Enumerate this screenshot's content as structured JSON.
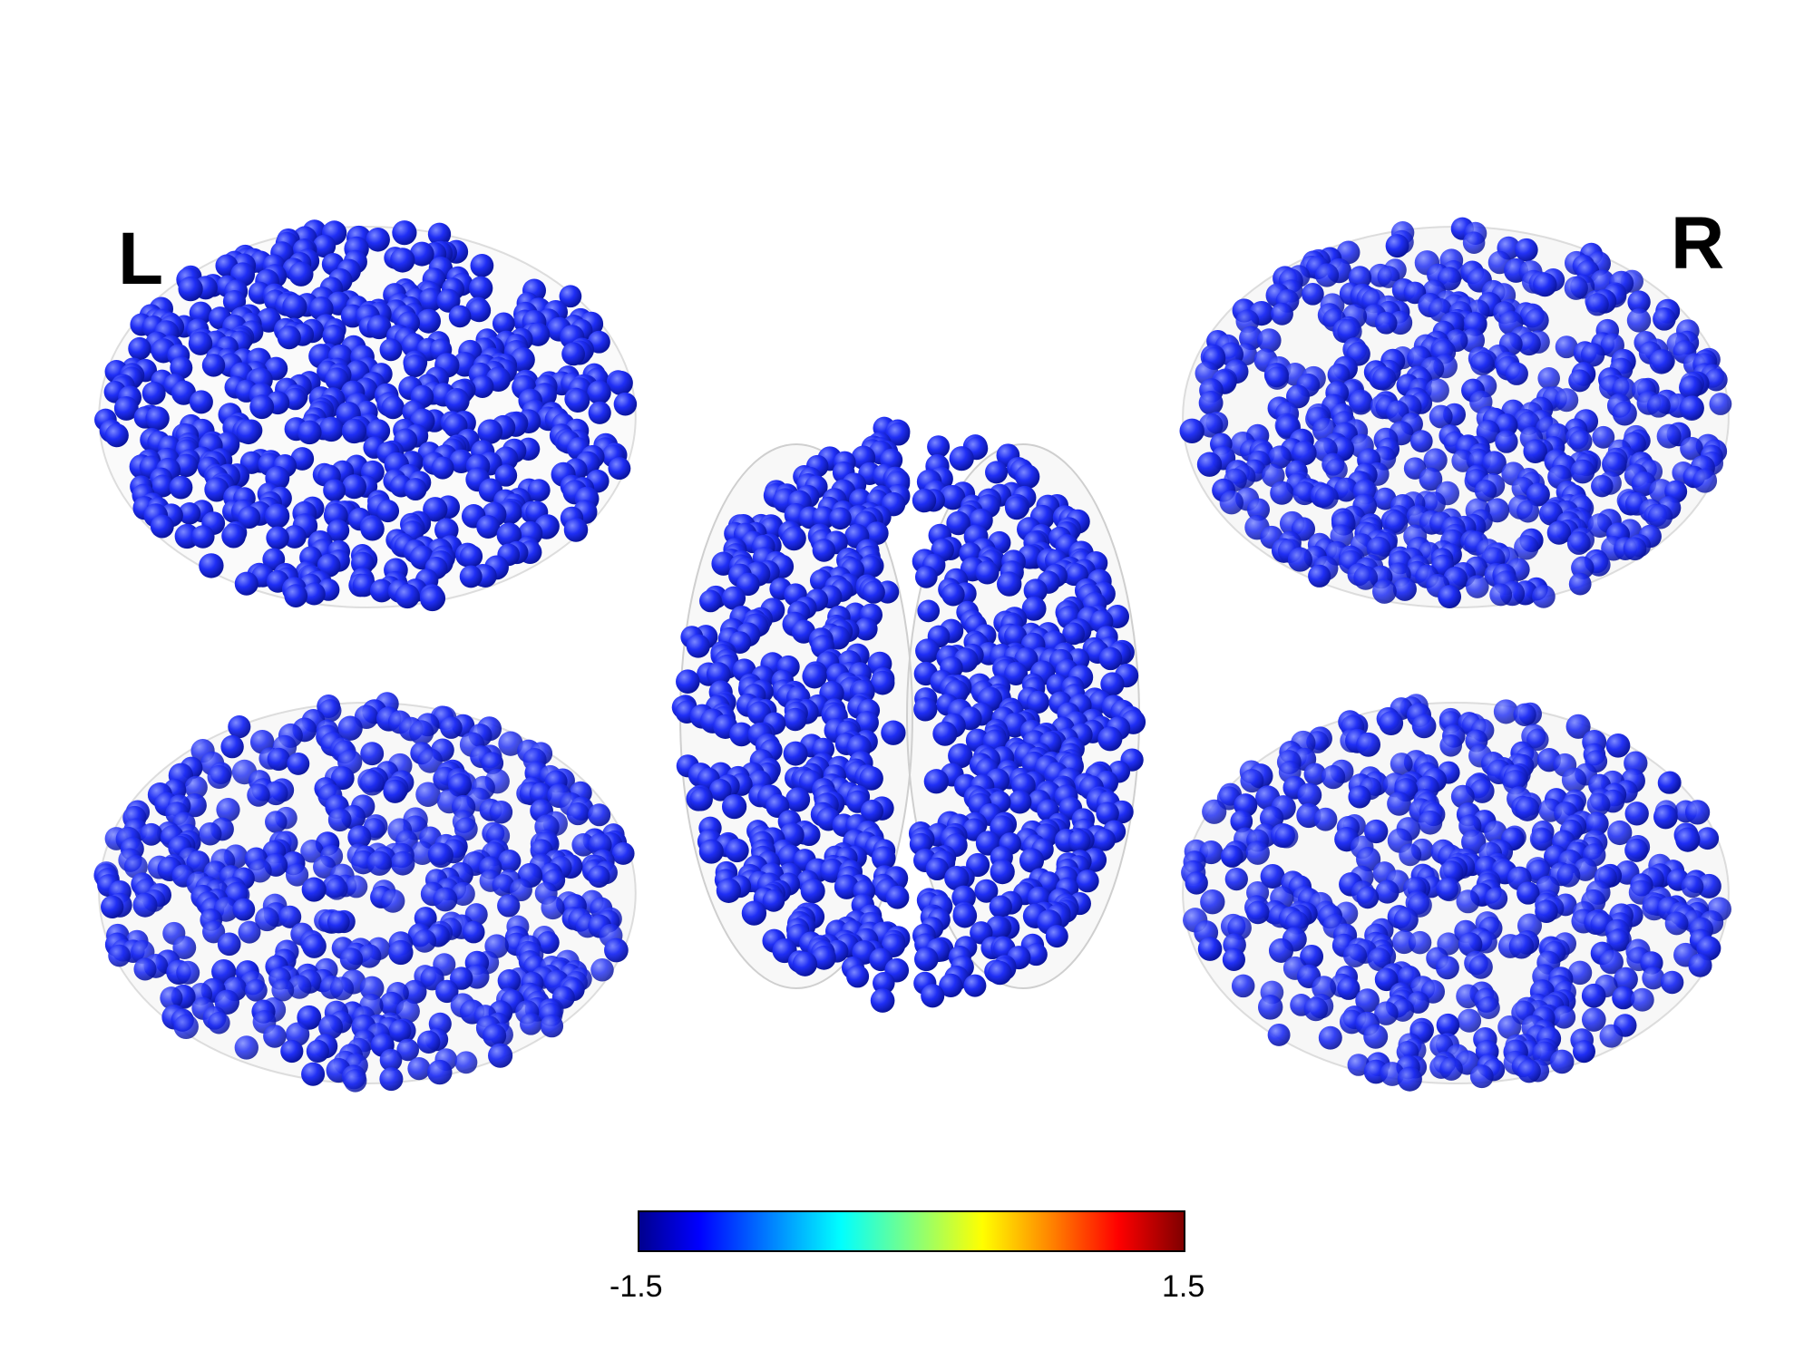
{
  "labels": {
    "left": "L",
    "right": "R"
  },
  "colorbar": {
    "min": "-1.5",
    "max": "1.5"
  },
  "colors": {
    "node": "#1f2ef5",
    "node_dark": "#0a13a8",
    "node_highlight": "#6f7dff",
    "brain_surface": "#d9d9d9"
  },
  "views": [
    {
      "name": "left-lateral"
    },
    {
      "name": "left-medial"
    },
    {
      "name": "axial-top"
    },
    {
      "name": "right-lateral"
    },
    {
      "name": "right-medial"
    }
  ]
}
